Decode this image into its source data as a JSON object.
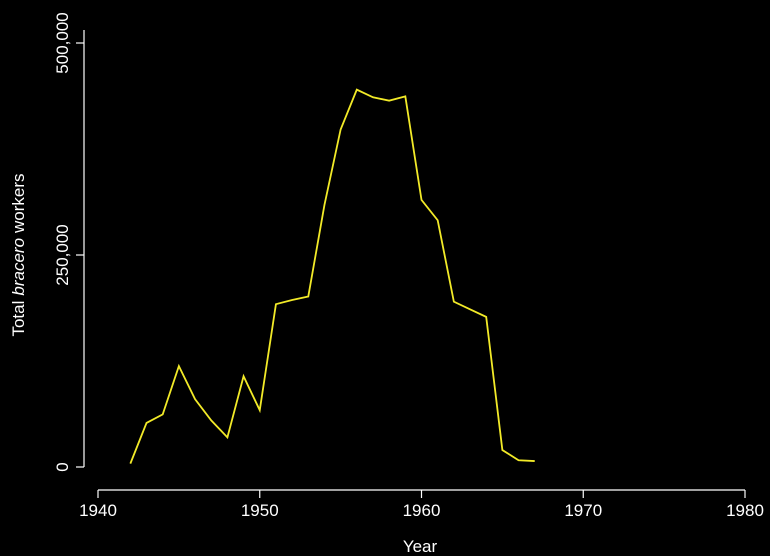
{
  "chart_data": {
    "type": "line",
    "xlabel": "Year",
    "ylabel": [
      "Total",
      "bracero",
      "workers"
    ],
    "x": [
      1942,
      1943,
      1944,
      1945,
      1946,
      1947,
      1948,
      1949,
      1950,
      1951,
      1952,
      1953,
      1954,
      1955,
      1956,
      1957,
      1958,
      1959,
      1960,
      1961,
      1962,
      1963,
      1964,
      1965,
      1966,
      1967
    ],
    "series": [
      {
        "name": "bracero",
        "color": "#f2ea28",
        "values": [
          4000,
          52000,
          62000,
          119000,
          80000,
          55000,
          35000,
          107000,
          67000,
          192000,
          197000,
          201000,
          309000,
          398000,
          445000,
          436000,
          432000,
          437000,
          315000,
          291000,
          195000,
          186000,
          177000,
          20000,
          8000,
          7000
        ]
      }
    ],
    "xlim": [
      1940,
      1980
    ],
    "xticks": [
      1940,
      1950,
      1960,
      1970,
      1980
    ],
    "ylim": [
      0,
      500000
    ],
    "yticks": [
      0,
      {
        "value": 250000,
        "label": "250,000"
      },
      {
        "value": 500000,
        "label": "500,000"
      }
    ],
    "grid": false
  }
}
